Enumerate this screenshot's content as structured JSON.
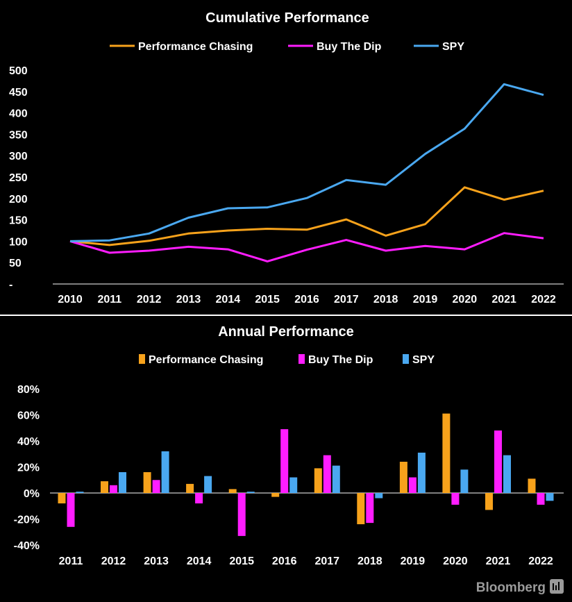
{
  "colors": {
    "performance_chasing": "#f7a21b",
    "buy_the_dip": "#ff1dff",
    "spy": "#4aa8f0",
    "background": "#000000",
    "divider": "#ffffff",
    "brand": "#9a9a9a"
  },
  "brand": {
    "name": "Bloomberg",
    "icon": "bloomberg-terminal-icon"
  },
  "chart_data": [
    {
      "type": "line",
      "title": "Cumulative Performance",
      "legend_position": "top-center",
      "categories": [
        "2010",
        "2011",
        "2012",
        "2013",
        "2014",
        "2015",
        "2016",
        "2017",
        "2018",
        "2019",
        "2020",
        "2021",
        "2022"
      ],
      "series": [
        {
          "name": "Performance Chasing",
          "color_key": "performance_chasing",
          "values": [
            100,
            91,
            101,
            118,
            125,
            129,
            127,
            151,
            113,
            140,
            226,
            197,
            218
          ]
        },
        {
          "name": "Buy The Dip",
          "color_key": "buy_the_dip",
          "values": [
            100,
            73,
            78,
            87,
            81,
            53,
            80,
            103,
            78,
            89,
            81,
            119,
            107
          ]
        },
        {
          "name": "SPY",
          "color_key": "spy",
          "values": [
            100,
            102,
            118,
            155,
            177,
            179,
            201,
            243,
            232,
            304,
            363,
            467,
            442
          ]
        }
      ],
      "y_ticks": [
        "500",
        "450",
        "400",
        "350",
        "300",
        "250",
        "200",
        "150",
        "100",
        "50",
        "-"
      ],
      "ylim": [
        0,
        500
      ],
      "xlabel": "",
      "ylabel": "",
      "grid": false
    },
    {
      "type": "bar",
      "title": "Annual Performance",
      "legend_position": "top-center",
      "categories": [
        "2011",
        "2012",
        "2013",
        "2014",
        "2015",
        "2016",
        "2017",
        "2018",
        "2019",
        "2020",
        "2021",
        "2022"
      ],
      "series": [
        {
          "name": "Performance Chasing",
          "color_key": "performance_chasing",
          "values": [
            -8,
            9,
            16,
            7,
            3,
            -3,
            19,
            -24,
            24,
            61,
            -13,
            11
          ]
        },
        {
          "name": "Buy The Dip",
          "color_key": "buy_the_dip",
          "values": [
            -26,
            6,
            10,
            -8,
            -33,
            49,
            29,
            -23,
            12,
            -9,
            48,
            -9
          ]
        },
        {
          "name": "SPY",
          "color_key": "spy",
          "values": [
            1,
            16,
            32,
            13,
            1,
            12,
            21,
            -4,
            31,
            18,
            29,
            -6
          ]
        }
      ],
      "y_ticks": [
        "80%",
        "60%",
        "40%",
        "20%",
        "0%",
        "-20%",
        "-40%"
      ],
      "ylim": [
        -40,
        80
      ],
      "xlabel": "",
      "ylabel": "",
      "grid": false
    }
  ]
}
